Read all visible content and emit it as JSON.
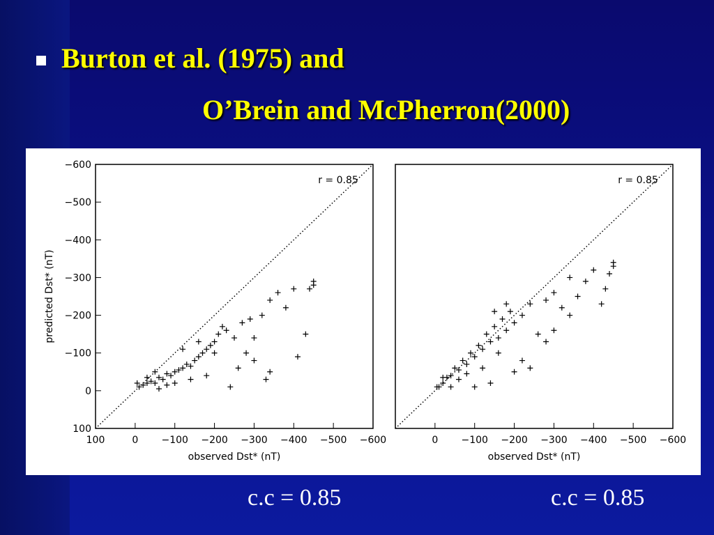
{
  "title_lines": [
    "Burton et al. (1975) and",
    "O’Brein and McPherron(2000)"
  ],
  "captions": [
    "c.c = 0.85",
    "c.c = 0.85"
  ],
  "chart_data": [
    {
      "type": "scatter",
      "xlabel": "observed Dst* (nT)",
      "ylabel": "predicted Dst* (nT)",
      "annotation": "r = 0.85",
      "color": "#000000",
      "xlim": [
        100,
        -600
      ],
      "ylim": [
        100,
        -600
      ],
      "xticks": [
        100,
        0,
        {
          "value": -100,
          "label": "−100"
        },
        {
          "value": -200,
          "label": "−200"
        },
        {
          "value": -300,
          "label": "−300"
        },
        {
          "value": -400,
          "label": "−400"
        },
        {
          "value": -500,
          "label": "−500"
        },
        {
          "value": -600,
          "label": "−600"
        }
      ],
      "yticks": [
        100,
        0,
        {
          "value": -100,
          "label": "−100"
        },
        {
          "value": -200,
          "label": "−200"
        },
        {
          "value": -300,
          "label": "−300"
        },
        {
          "value": -400,
          "label": "−400"
        },
        {
          "value": -500,
          "label": "−500"
        },
        {
          "value": -600,
          "label": "−600"
        }
      ],
      "x": [
        -10,
        -20,
        -30,
        -40,
        -50,
        -60,
        -70,
        -80,
        -90,
        -100,
        -110,
        -120,
        -130,
        -140,
        -150,
        -160,
        -170,
        -180,
        -190,
        -200,
        -210,
        -220,
        -230,
        -250,
        -270,
        -290,
        -300,
        -320,
        -330,
        -340,
        -360,
        -380,
        -400,
        -410,
        -430,
        -440,
        -450,
        -450,
        -60,
        -80,
        -100,
        -140,
        -180,
        -240,
        -260,
        -280,
        -300,
        -340,
        -50,
        -120,
        -160,
        -200,
        -5,
        -30
      ],
      "values": [
        -10,
        -15,
        -20,
        -25,
        -20,
        -35,
        -30,
        -45,
        -40,
        -50,
        -55,
        -60,
        -70,
        -65,
        -80,
        -90,
        -100,
        -110,
        -120,
        -130,
        -150,
        -170,
        -160,
        -140,
        -180,
        -190,
        -140,
        -200,
        -30,
        -240,
        -260,
        -220,
        -270,
        -90,
        -150,
        -270,
        -290,
        -280,
        -5,
        -15,
        -20,
        -30,
        -40,
        -10,
        -60,
        -100,
        -80,
        -50,
        -50,
        -110,
        -130,
        -100,
        -20,
        -35
      ]
    },
    {
      "type": "scatter",
      "xlabel": "observed Dst* (nT)",
      "annotation": "r = 0.85",
      "color": "#000000",
      "xlim": [
        100,
        -600
      ],
      "ylim": [
        100,
        -600
      ],
      "xticks": [
        0,
        {
          "value": -100,
          "label": "−100"
        },
        {
          "value": -200,
          "label": "−200"
        },
        {
          "value": -300,
          "label": "−300"
        },
        {
          "value": -400,
          "label": "−400"
        },
        {
          "value": -500,
          "label": "−500"
        },
        {
          "value": -600,
          "label": "−600"
        }
      ],
      "x": [
        -10,
        -20,
        -30,
        -40,
        -50,
        -60,
        -70,
        -80,
        -90,
        -100,
        -110,
        -120,
        -130,
        -140,
        -150,
        -160,
        -170,
        -180,
        -190,
        -200,
        -220,
        -240,
        -260,
        -280,
        -300,
        -320,
        -340,
        -360,
        -380,
        -400,
        -420,
        -430,
        -450,
        -450,
        -440,
        -280,
        -220,
        -200,
        -140,
        -100,
        -40,
        -60,
        -80,
        -120,
        -160,
        -240,
        -340,
        -300,
        -180,
        -150,
        -20,
        -5
      ],
      "values": [
        -10,
        -20,
        -35,
        -40,
        -60,
        -55,
        -80,
        -70,
        -100,
        -90,
        -120,
        -110,
        -150,
        -130,
        -170,
        -140,
        -190,
        -160,
        -210,
        -180,
        -200,
        -230,
        -150,
        -240,
        -260,
        -220,
        -300,
        -250,
        -290,
        -320,
        -230,
        -270,
        -340,
        -330,
        -310,
        -130,
        -80,
        -50,
        -20,
        -10,
        -10,
        -30,
        -45,
        -60,
        -100,
        -60,
        -200,
        -160,
        -230,
        -210,
        -35,
        -10
      ]
    }
  ]
}
